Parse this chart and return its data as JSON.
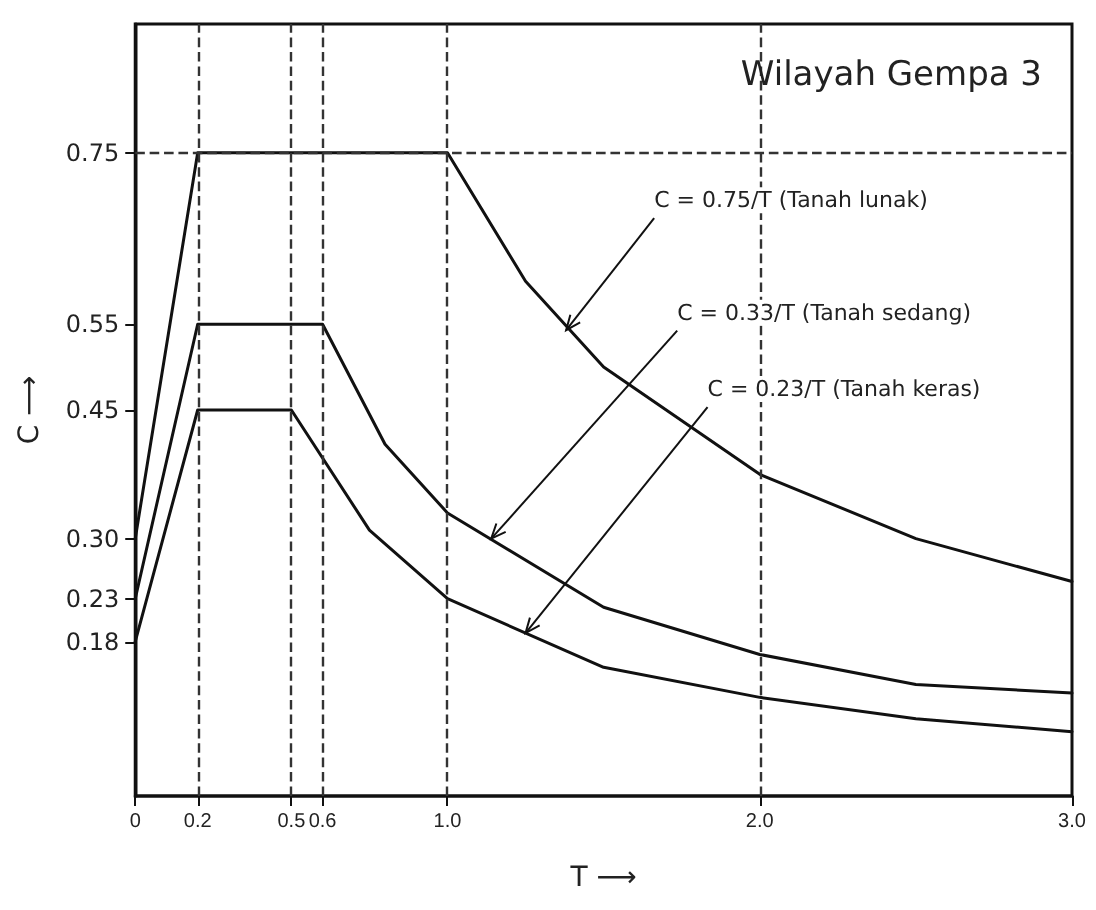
{
  "chart_data": {
    "type": "line",
    "title": "Wilayah Gempa 3",
    "xlabel": "T ⟶",
    "ylabel": "C ⟶",
    "xlim": [
      0,
      3
    ],
    "ylim": [
      0,
      0.9
    ],
    "xticks": [
      0,
      0.2,
      0.5,
      0.6,
      {
        "value": 1,
        "label": "1.0"
      },
      {
        "value": 2,
        "label": "2.0"
      },
      {
        "value": 3,
        "label": "3.0"
      }
    ],
    "yticks": [
      0.18,
      0.23,
      {
        "value": 0.3,
        "label": "0.30"
      },
      0.45,
      0.55,
      0.75
    ],
    "grid": false,
    "marker": "none",
    "line_style": "solid",
    "series": [
      {
        "color": "#111111",
        "x": [
          0,
          0.2,
          1.0,
          1.25,
          1.5,
          2.0,
          2.5,
          3.0
        ],
        "values": [
          0.3,
          0.75,
          0.75,
          0.6,
          0.5,
          0.375,
          0.3,
          0.25
        ]
      },
      {
        "color": "#111111",
        "x": [
          0,
          0.2,
          0.6,
          0.8,
          1.0,
          1.5,
          2.0,
          2.5,
          3.0
        ],
        "values": [
          0.23,
          0.55,
          0.55,
          0.41,
          0.33,
          0.22,
          0.165,
          0.13,
          0.12
        ]
      },
      {
        "color": "#111111",
        "x": [
          0,
          0.2,
          0.5,
          0.75,
          1.0,
          1.5,
          2.0,
          2.5,
          3.0
        ],
        "values": [
          0.18,
          0.45,
          0.45,
          0.31,
          0.23,
          0.15,
          0.115,
          0.09,
          0.075
        ]
      }
    ],
    "ref_lines": [
      {
        "axis": "x",
        "value": 0.2,
        "line_style": "dashed"
      },
      {
        "axis": "x",
        "value": 0.5,
        "line_style": "dashed"
      },
      {
        "axis": "x",
        "value": 0.6,
        "line_style": "dashed"
      },
      {
        "axis": "x",
        "value": 1,
        "line_style": "dashed"
      },
      {
        "axis": "x",
        "value": 2,
        "line_style": "dashed"
      },
      {
        "axis": "y",
        "value": 0.75,
        "line_style": "dashed"
      }
    ],
    "annotations": [
      {
        "text": "C = 0.75/T (Tanah lunak)",
        "x": 1.38,
        "y": 0.543
      },
      {
        "text": "C = 0.33/T (Tanah sedang)",
        "x": 1.14,
        "y": 0.3
      },
      {
        "text": "C = 0.23/T (Tanah keras)",
        "x": 1.25,
        "y": 0.19
      }
    ]
  }
}
